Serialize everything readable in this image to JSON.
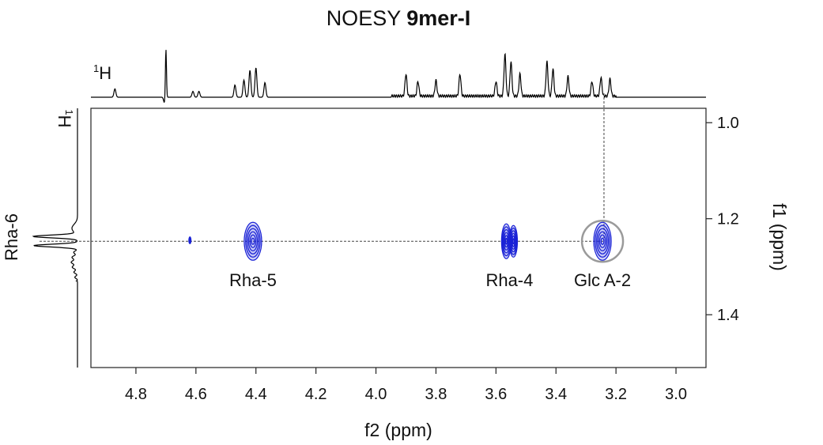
{
  "title": {
    "prefix": "NOESY",
    "bold": "9mer-I"
  },
  "chart_data": {
    "type": "heatmap",
    "subtype": "2D NOESY NMR spectrum with 1D projections",
    "xlabel": "f2 (ppm)",
    "ylabel": "f1 (ppm)",
    "xlim": [
      4.95,
      2.9
    ],
    "ylim": [
      0.97,
      1.51
    ],
    "x_ticks": [
      "4.8",
      "4.6",
      "4.4",
      "4.2",
      "4.0",
      "3.8",
      "3.6",
      "3.4",
      "3.2",
      "3.0"
    ],
    "x_tick_values": [
      4.8,
      4.6,
      4.4,
      4.2,
      4.0,
      3.8,
      3.6,
      3.4,
      3.2,
      3.0
    ],
    "y_ticks": [
      "1.0",
      "1.2",
      "1.4"
    ],
    "y_tick_values": [
      1.0,
      1.2,
      1.4
    ],
    "top_projection_label": "1H",
    "left_projection_label": "1H",
    "left_peak_label": "Rha-6",
    "reference_line_f1": 1.247,
    "vertical_guide_f2": 3.24,
    "cross_peaks": [
      {
        "label": "",
        "f2": 4.62,
        "f1": 1.245,
        "size": "small"
      },
      {
        "label": "Rha-5",
        "f2": 4.41,
        "f1": 1.247,
        "size": "large"
      },
      {
        "label": "Rha-4",
        "f2": 3.555,
        "f1": 1.247,
        "size": "double"
      },
      {
        "label": "Glc A-2",
        "f2": 3.245,
        "f1": 1.247,
        "size": "large",
        "circled": true
      }
    ],
    "top_projection_peaks": [
      {
        "f2": 4.87,
        "height": 0.17
      },
      {
        "f2": 4.7,
        "height": 1.0
      },
      {
        "f2": 4.61,
        "height": 0.12
      },
      {
        "f2": 4.59,
        "height": 0.12
      },
      {
        "f2": 4.47,
        "height": 0.25
      },
      {
        "f2": 4.44,
        "height": 0.35
      },
      {
        "f2": 4.42,
        "height": 0.55
      },
      {
        "f2": 4.4,
        "height": 0.6
      },
      {
        "f2": 4.37,
        "height": 0.3
      },
      {
        "f2": 3.9,
        "height": 0.45
      },
      {
        "f2": 3.86,
        "height": 0.3
      },
      {
        "f2": 3.8,
        "height": 0.32
      },
      {
        "f2": 3.72,
        "height": 0.45
      },
      {
        "f2": 3.6,
        "height": 0.3
      },
      {
        "f2": 3.57,
        "height": 0.85
      },
      {
        "f2": 3.55,
        "height": 0.7
      },
      {
        "f2": 3.52,
        "height": 0.45
      },
      {
        "f2": 3.43,
        "height": 0.7
      },
      {
        "f2": 3.41,
        "height": 0.55
      },
      {
        "f2": 3.36,
        "height": 0.4
      },
      {
        "f2": 3.28,
        "height": 0.3
      },
      {
        "f2": 3.25,
        "height": 0.38
      },
      {
        "f2": 3.22,
        "height": 0.35
      }
    ],
    "colors": {
      "contour": "#1a22d6",
      "circle": "#9a9a9a",
      "axis": "#222222"
    }
  }
}
